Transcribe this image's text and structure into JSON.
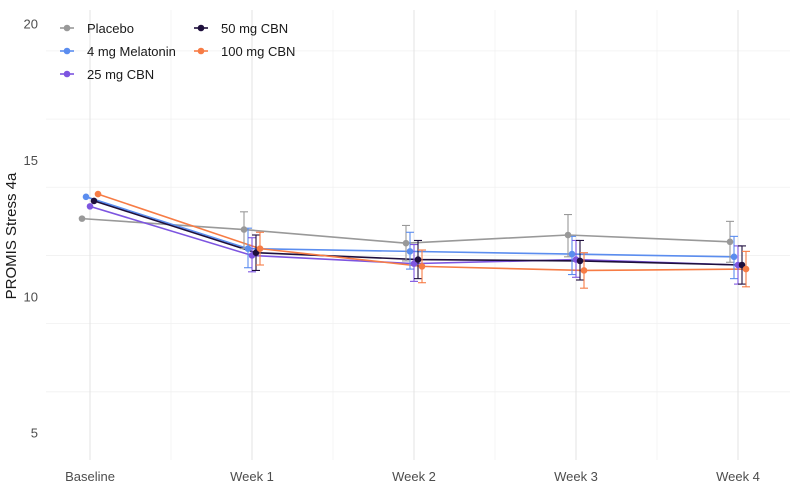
{
  "chart_data": {
    "type": "line",
    "title": "",
    "xlabel": "",
    "ylabel": "PROMIS Stress 4a",
    "categories": [
      "Baseline",
      "Week 1",
      "Week 2",
      "Week 3",
      "Week 4"
    ],
    "ylim": [
      4,
      20.5
    ],
    "yticks": [
      5,
      10,
      15,
      20
    ],
    "grid": true,
    "legend_position": "top-left",
    "series": [
      {
        "name": "Placebo",
        "color": "#999999",
        "values": [
          12.85,
          12.45,
          11.95,
          12.25,
          12.0
        ],
        "err_low": [
          null,
          11.75,
          11.3,
          11.45,
          11.25
        ],
        "err_high": [
          null,
          13.1,
          12.6,
          13.0,
          12.75
        ]
      },
      {
        "name": "4 mg Melatonin",
        "color": "#5b8def",
        "values": [
          13.65,
          11.75,
          11.65,
          11.55,
          11.45
        ],
        "err_low": [
          null,
          11.05,
          11.0,
          10.8,
          10.65
        ],
        "err_high": [
          null,
          12.5,
          12.35,
          12.2,
          12.2
        ]
      },
      {
        "name": "25 mg CBN",
        "color": "#7d55e0",
        "values": [
          13.3,
          11.5,
          11.2,
          11.35,
          11.15
        ],
        "err_low": [
          null,
          10.9,
          10.55,
          10.7,
          10.45
        ],
        "err_high": [
          null,
          12.15,
          11.9,
          12.05,
          11.85
        ]
      },
      {
        "name": "50 mg CBN",
        "color": "#1e0f3c",
        "values": [
          13.5,
          11.6,
          11.35,
          11.3,
          11.15
        ],
        "err_low": [
          null,
          10.95,
          10.65,
          10.6,
          10.45
        ],
        "err_high": [
          null,
          12.25,
          12.05,
          12.05,
          11.85
        ]
      },
      {
        "name": "100 mg CBN",
        "color": "#f77c45",
        "values": [
          13.75,
          11.75,
          11.1,
          10.95,
          11.0
        ],
        "err_low": [
          null,
          11.15,
          10.5,
          10.3,
          10.35
        ],
        "err_high": [
          null,
          12.35,
          11.7,
          11.6,
          11.65
        ]
      }
    ]
  }
}
